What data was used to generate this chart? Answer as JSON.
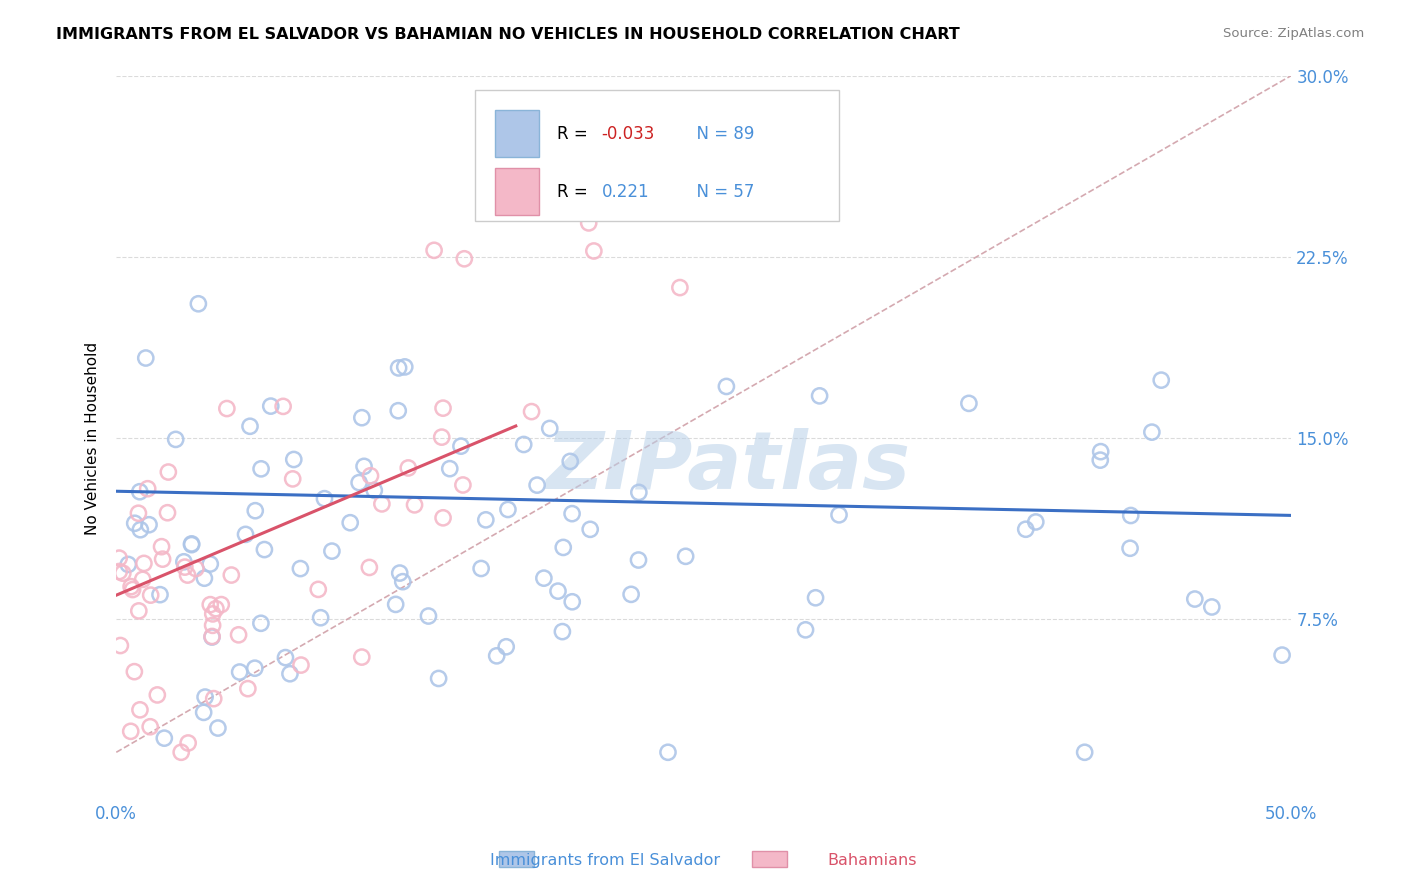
{
  "title": "IMMIGRANTS FROM EL SALVADOR VS BAHAMIAN NO VEHICLES IN HOUSEHOLD CORRELATION CHART",
  "source": "Source: ZipAtlas.com",
  "xlabel_blue": "Immigrants from El Salvador",
  "xlabel_pink": "Bahamians",
  "ylabel": "No Vehicles in Household",
  "xlim": [
    0.0,
    0.5
  ],
  "ylim": [
    0.0,
    0.3
  ],
  "xticks": [
    0.0,
    0.1,
    0.2,
    0.3,
    0.4,
    0.5
  ],
  "yticks": [
    0.0,
    0.075,
    0.15,
    0.225,
    0.3
  ],
  "xticklabels": [
    "0.0%",
    "",
    "",
    "",
    "",
    "50.0%"
  ],
  "yticklabels_right": [
    "",
    "7.5%",
    "15.0%",
    "22.5%",
    "30.0%"
  ],
  "blue_R": -0.033,
  "blue_N": 89,
  "pink_R": 0.221,
  "pink_N": 57,
  "blue_color": "#aec6e8",
  "pink_color": "#f4b8c8",
  "blue_line_color": "#3b6fc4",
  "pink_line_color": "#d9536a",
  "ref_line_color": "#d0a0a8",
  "watermark": "ZIPatlas",
  "legend_blue_label": "R = -0.033  N = 89",
  "legend_pink_label": "R =  0.221  N = 57"
}
